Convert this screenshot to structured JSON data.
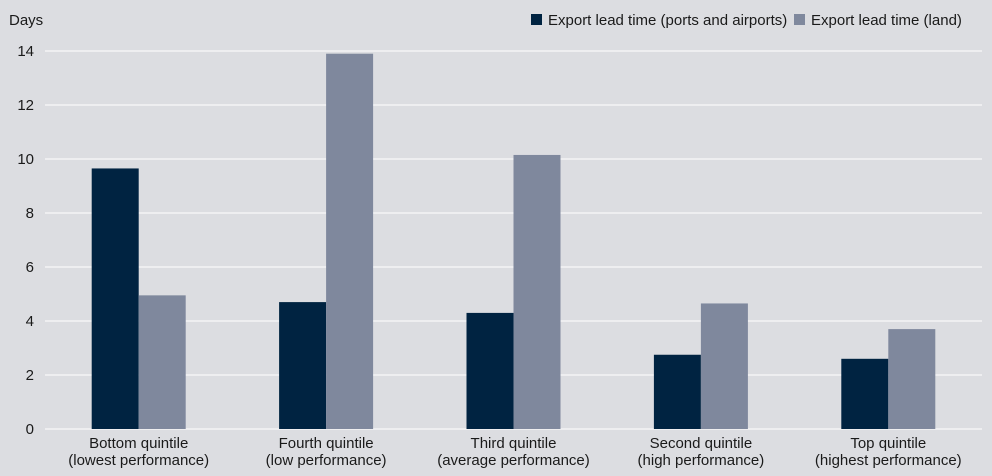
{
  "chart_data": {
    "type": "bar",
    "title": "",
    "xlabel": "",
    "ylabel": "Days",
    "ylim": [
      0,
      14
    ],
    "yticks": [
      0,
      2,
      4,
      6,
      8,
      10,
      12,
      14
    ],
    "grid": true,
    "legend_position": "top-right",
    "categories": [
      [
        "Bottom quintile",
        "(lowest performance)"
      ],
      [
        "Fourth quintile",
        "(low performance)"
      ],
      [
        "Third quintile",
        "(average performance)"
      ],
      [
        "Second quintile",
        "(high performance)"
      ],
      [
        "Top quintile",
        "(highest performance)"
      ]
    ],
    "series": [
      {
        "name": "Export lead time (ports and airports)",
        "color": "#002341",
        "values": [
          9.65,
          4.7,
          4.3,
          2.75,
          2.6
        ]
      },
      {
        "name": "Export lead time (land)",
        "color": "#7f889d",
        "values": [
          4.95,
          13.9,
          10.15,
          4.65,
          3.7
        ]
      }
    ]
  }
}
